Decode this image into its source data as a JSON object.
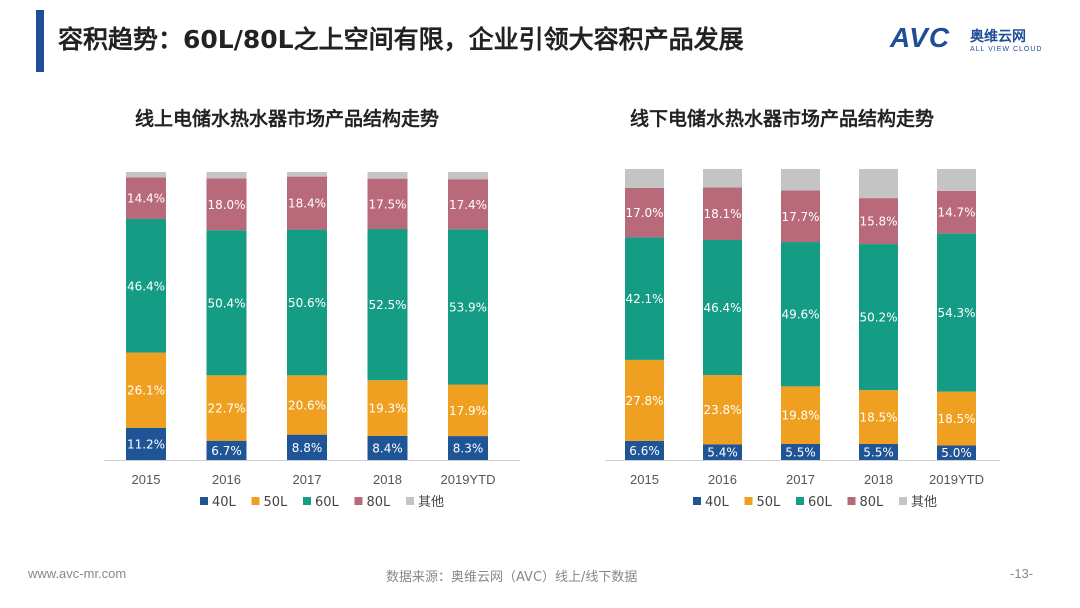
{
  "header": {
    "title": "容积趋势：60L/80L之上空间有限，企业引领大容积产品发展",
    "logo_main": "AVC",
    "logo_cn": "奥维云网",
    "logo_en": "ALL VIEW CLOUD"
  },
  "footer": {
    "website": "www.avc-mr.com",
    "source": "数据来源：奥维云网（AVC）线上/线下数据",
    "page": "-13-"
  },
  "colors": {
    "title_bar": "#1f4e96",
    "40L": "#1f5496",
    "50L": "#f0a020",
    "60L": "#149c84",
    "80L": "#b86a7a",
    "其他": "#c4c4c4"
  },
  "chart_data": [
    {
      "type": "bar",
      "stacked": true,
      "title": "线上电储水热水器市场产品结构走势",
      "categories": [
        "2015",
        "2016",
        "2017",
        "2018",
        "2019YTD"
      ],
      "series": [
        {
          "name": "40L",
          "values": [
            11.2,
            6.7,
            8.8,
            8.4,
            8.3
          ]
        },
        {
          "name": "50L",
          "values": [
            26.1,
            22.7,
            20.6,
            19.3,
            17.9
          ]
        },
        {
          "name": "60L",
          "values": [
            46.4,
            50.4,
            50.6,
            52.5,
            53.9
          ]
        },
        {
          "name": "80L",
          "values": [
            14.4,
            18.0,
            18.4,
            17.5,
            17.4
          ]
        },
        {
          "name": "其他",
          "values": [
            1.9,
            2.2,
            1.6,
            2.3,
            2.5
          ]
        }
      ],
      "labeled_series": [
        "40L",
        "50L",
        "60L",
        "80L"
      ],
      "ylim": [
        0,
        100
      ],
      "legend": "bottom"
    },
    {
      "type": "bar",
      "stacked": true,
      "title": "线下电储水热水器市场产品结构走势",
      "categories": [
        "2015",
        "2016",
        "2017",
        "2018",
        "2019YTD"
      ],
      "series": [
        {
          "name": "40L",
          "values": [
            6.6,
            5.4,
            5.5,
            5.5,
            5.0
          ]
        },
        {
          "name": "50L",
          "values": [
            27.8,
            23.8,
            19.8,
            18.5,
            18.5
          ]
        },
        {
          "name": "60L",
          "values": [
            42.1,
            46.4,
            49.6,
            50.2,
            54.3
          ]
        },
        {
          "name": "80L",
          "values": [
            17.0,
            18.1,
            17.7,
            15.8,
            14.7
          ]
        },
        {
          "name": "其他",
          "values": [
            6.5,
            6.3,
            7.4,
            10.0,
            7.5
          ]
        }
      ],
      "labeled_series": [
        "40L",
        "50L",
        "60L",
        "80L"
      ],
      "ylim": [
        0,
        100
      ],
      "legend": "bottom"
    }
  ]
}
